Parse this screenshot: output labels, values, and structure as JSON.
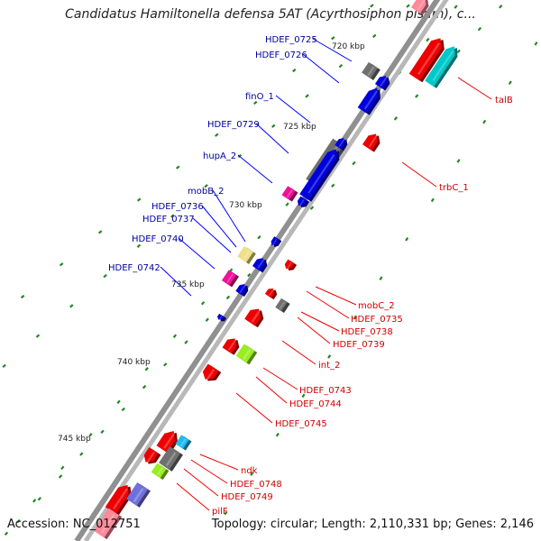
{
  "title": "Candidatus Hamiltonella defensa 5AT (Acyrthosiphon pisum), c...",
  "footer": {
    "accession": "Accession: NC_012751",
    "summary": "Topology: circular; Length: 2,110,331 bp; Genes: 2,146"
  },
  "colors": {
    "forward_label": "#000099",
    "reverse_label": "#cc0000",
    "red": "#ee0000",
    "blue": "#0000dd",
    "gray": "#707070",
    "cyan": "#00c8c8",
    "magenta": "#ee1199",
    "yellow": "#eee088",
    "lime": "#99ee22",
    "skyblue": "#22bbee",
    "pink": "#ff8899",
    "purple": "#7070dd",
    "tick_green": "#228822"
  },
  "kbp_labels": [
    "720 kbp",
    "725 kbp",
    "730 kbp",
    "735 kbp",
    "740 kbp",
    "745 kbp"
  ],
  "genes_forward": [
    {
      "label": "HDEF_0725"
    },
    {
      "label": "HDEF_0726"
    },
    {
      "label": "finO_1"
    },
    {
      "label": "HDEF_0729"
    },
    {
      "label": "hupA_2"
    },
    {
      "label": "mobB_2"
    },
    {
      "label": "HDEF_0736"
    },
    {
      "label": "HDEF_0737"
    },
    {
      "label": "HDEF_0740"
    },
    {
      "label": "HDEF_0742"
    }
  ],
  "genes_reverse": [
    {
      "label": "talB"
    },
    {
      "label": "trbC_1"
    },
    {
      "label": "mobC_2"
    },
    {
      "label": "HDEF_0735"
    },
    {
      "label": "HDEF_0738"
    },
    {
      "label": "HDEF_0739"
    },
    {
      "label": "int_2"
    },
    {
      "label": "HDEF_0743"
    },
    {
      "label": "HDEF_0744"
    },
    {
      "label": "HDEF_0745"
    },
    {
      "label": "ndk"
    },
    {
      "label": "HDEF_0748"
    },
    {
      "label": "HDEF_0749"
    },
    {
      "label": "pilF"
    }
  ]
}
